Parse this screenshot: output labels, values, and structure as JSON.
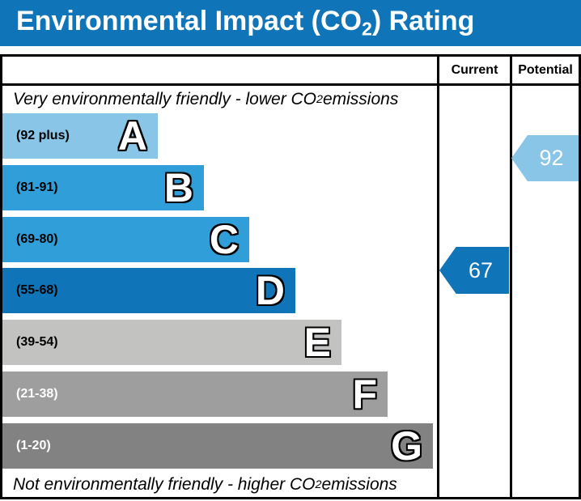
{
  "title": {
    "pre": "Environmental Impact (CO",
    "sub": "2",
    "post": ") Rating"
  },
  "header": {
    "current_label": "Current",
    "potential_label": "Potential"
  },
  "notes": {
    "top": {
      "pre": "Very environmentally friendly - lower CO",
      "sub": "2",
      "post": " emissions"
    },
    "bottom": {
      "pre": "Not environmentally friendly - higher CO",
      "sub": "2",
      "post": " emissions"
    }
  },
  "colors": {
    "title_bar": "#1074B8",
    "title_text": "#FFFFFF",
    "border": "#000000"
  },
  "chart_data": {
    "type": "bar",
    "title": "Environmental Impact (CO2) Rating",
    "bands": [
      {
        "letter": "A",
        "range_label": "(92 plus)",
        "min": 92,
        "max": 100,
        "color": "#88C5E7",
        "label_color": "#000000"
      },
      {
        "letter": "B",
        "range_label": "(81-91)",
        "min": 81,
        "max": 91,
        "color": "#2F9ED9",
        "label_color": "#000000"
      },
      {
        "letter": "C",
        "range_label": "(69-80)",
        "min": 69,
        "max": 80,
        "color": "#2F9ED9",
        "label_color": "#000000"
      },
      {
        "letter": "D",
        "range_label": "(55-68)",
        "min": 55,
        "max": 68,
        "color": "#1074B8",
        "label_color": "#000000"
      },
      {
        "letter": "E",
        "range_label": "(39-54)",
        "min": 39,
        "max": 54,
        "color": "#C2C2C0",
        "label_color": "#000000"
      },
      {
        "letter": "F",
        "range_label": "(21-38)",
        "min": 21,
        "max": 38,
        "color": "#9E9E9E",
        "label_color": "#FFFFFF"
      },
      {
        "letter": "G",
        "range_label": "(1-20)",
        "min": 1,
        "max": 20,
        "color": "#828282",
        "label_color": "#FFFFFF"
      }
    ],
    "current": {
      "value": "67",
      "band": "D",
      "arrow_color": "#1074B8",
      "text_color": "#FFFFFF"
    },
    "potential": {
      "value": "92",
      "band": "A",
      "arrow_color": "#88C5E7",
      "text_color": "#FFFFFF"
    }
  }
}
